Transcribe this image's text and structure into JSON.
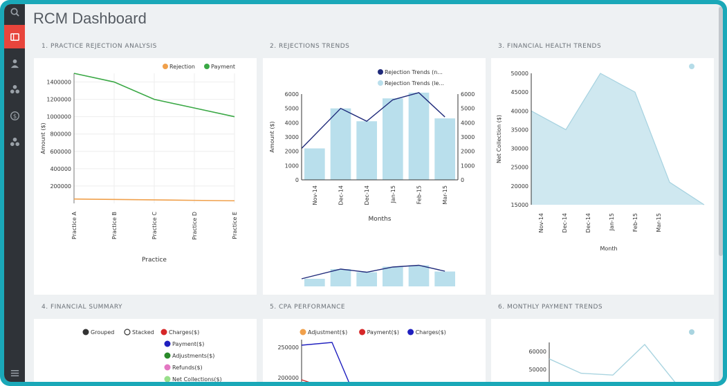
{
  "app": {
    "title": "RCM Dashboard"
  },
  "sidebar": {
    "items": [
      {
        "icon": "search-icon",
        "active": false
      },
      {
        "icon": "dashboard-icon",
        "active": true
      },
      {
        "icon": "user-icon",
        "active": false
      },
      {
        "icon": "cluster-icon",
        "active": false
      },
      {
        "icon": "dollar-icon",
        "active": false
      },
      {
        "icon": "cluster-icon",
        "active": false
      },
      {
        "icon": "menu-icon",
        "active": false
      }
    ]
  },
  "panels": {
    "p1": {
      "title": "1. PRACTICE REJECTION ANALYSIS"
    },
    "p2": {
      "title": "2. REJECTIONS TRENDS"
    },
    "p3": {
      "title": "3. FINANCIAL HEALTH TRENDS"
    },
    "p4": {
      "title": "4. FINANCIAL SUMMARY"
    },
    "p5": {
      "title": "5. CPA PERFORMANCE"
    },
    "p6": {
      "title": "6. MONTHLY PAYMENT TRENDS"
    }
  },
  "colors": {
    "accent": "#e8453c",
    "sidebar": "#2f3338",
    "frame": "#1aa8b8"
  },
  "chart_data": [
    {
      "id": "practice-rejection",
      "type": "line",
      "categories": [
        "Practice A",
        "Practice B",
        "Practice C",
        "Practice D",
        "Practice E"
      ],
      "series": [
        {
          "name": "Rejection",
          "color": "#f0a04b",
          "values": [
            50000,
            45000,
            40000,
            35000,
            30000
          ]
        },
        {
          "name": "Payment",
          "color": "#3aa845",
          "values": [
            1500000,
            1400000,
            1200000,
            1100000,
            1000000
          ]
        }
      ],
      "xlabel": "Practice",
      "ylabel": "Amount ($)",
      "yticks": [
        "200000",
        "400000",
        "600000",
        "800000",
        "1000000",
        "1200000",
        "1400000"
      ],
      "ylim": [
        0,
        1500000
      ],
      "legend": "top"
    },
    {
      "id": "rejections-trends",
      "type": "bar",
      "categories": [
        "Nov-14",
        "Dec-14",
        "Dec-14",
        "Jan-15",
        "Feb-15",
        "Mar-15"
      ],
      "series": [
        {
          "name": "Rejection Trends (n...",
          "type": "line",
          "color": "#1f2a7a",
          "values": [
            2200,
            5000,
            4100,
            5600,
            6100,
            4400
          ]
        },
        {
          "name": "Rejection Trends (le...",
          "type": "bar",
          "color": "#b9dfec",
          "values": [
            2200,
            5000,
            4100,
            5700,
            6100,
            4300
          ]
        }
      ],
      "xlabel": "Months",
      "ylabel": "Amount ($)",
      "yticks": [
        "0",
        "1000",
        "2000",
        "3000",
        "4000",
        "5000",
        "6000"
      ],
      "ylim": [
        0,
        6000
      ],
      "legend": "top"
    },
    {
      "id": "financial-health",
      "type": "area",
      "categories": [
        "Nov-14",
        "Dec-14",
        "Dec-14",
        "Jan-15",
        "Feb-15",
        "Mar-15"
      ],
      "series": [
        {
          "name": "",
          "color": "#b5dce8",
          "values": [
            40000,
            35000,
            50000,
            45000,
            21000,
            15000
          ]
        }
      ],
      "xlabel": "Month",
      "ylabel": "Net Collection ($)",
      "yticks": [
        "15000",
        "20000",
        "25000",
        "30000",
        "35000",
        "40000",
        "45000",
        "50000"
      ],
      "ylim": [
        15000,
        50000
      ],
      "legend": "top-right"
    },
    {
      "id": "financial-summary",
      "type": "bar",
      "controls": [
        "Grouped",
        "Stacked"
      ],
      "series": [
        {
          "name": "Charges($)",
          "color": "#d62728"
        },
        {
          "name": "Payment($)",
          "color": "#1f1fbf"
        },
        {
          "name": "Adjustments($)",
          "color": "#2a8a2a"
        },
        {
          "name": "Refunds($)",
          "color": "#e377c2"
        },
        {
          "name": "Net Collections($)",
          "color": "#98df8a"
        }
      ],
      "legend": "top"
    },
    {
      "id": "cpa-performance",
      "type": "line",
      "series": [
        {
          "name": "Adjustment($)",
          "color": "#f0a04b"
        },
        {
          "name": "Payment($)",
          "color": "#d62728"
        },
        {
          "name": "Charges($)",
          "color": "#1f1fbf"
        }
      ],
      "yticks": [
        "200000",
        "250000"
      ],
      "legend": "top"
    },
    {
      "id": "monthly-payment",
      "type": "line",
      "series": [
        {
          "name": "",
          "color": "#a9d4e0",
          "values": [
            57000,
            49000,
            48000,
            65000,
            43000
          ]
        }
      ],
      "yticks": [
        "50000",
        "60000"
      ],
      "legend": "top-right"
    }
  ]
}
